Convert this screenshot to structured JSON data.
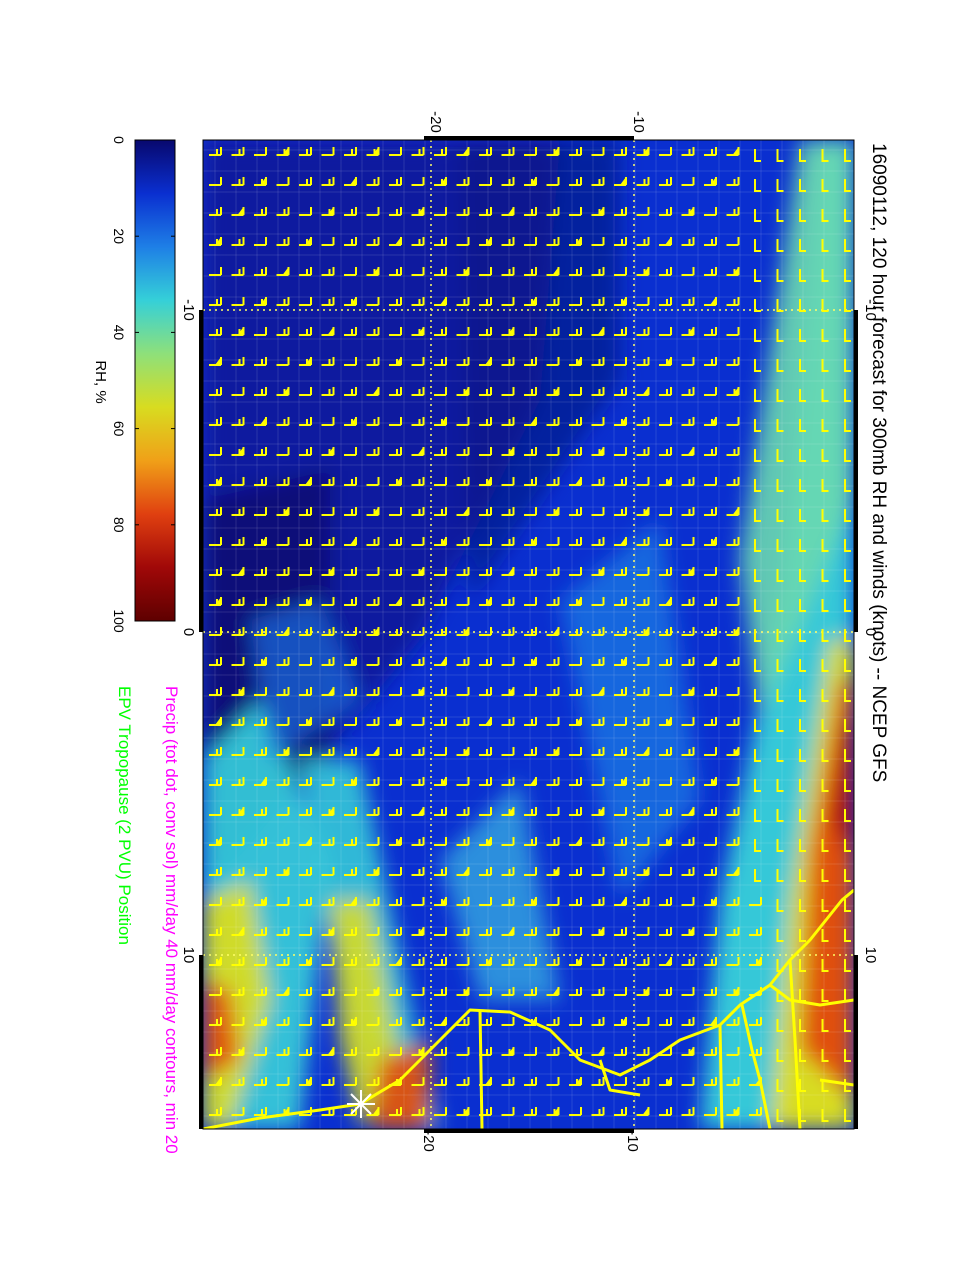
{
  "title": "16090112, 120 hour forecast for 300mb RH and winds (knots) -- NCEP GFS",
  "subtitle_precip": "Precip (tot dot, conv sol) mm/day 40 mm/day contours, min 20",
  "subtitle_tropopause": "EPV Tropopause (2 PVU) Position",
  "colorbar": {
    "label": "RH, %",
    "ticks": [
      "0",
      "20",
      "40",
      "60",
      "80",
      "100"
    ],
    "stops": [
      "#08086e",
      "#0a2fd0",
      "#1e7fe6",
      "#35d0d8",
      "#8ee07a",
      "#d8dc20",
      "#f0a018",
      "#e04010",
      "#a00808",
      "#5e0000"
    ]
  },
  "axes": {
    "top_ticks": [
      "-20",
      "-10"
    ],
    "bottom_ticks": [
      "-20",
      "-10"
    ],
    "left_ticks": [
      "-10",
      "0",
      "10"
    ],
    "right_ticks": [
      "-10",
      "0",
      "10"
    ]
  },
  "colors": {
    "barb": "#ffff00",
    "coast": "#ffff00",
    "precip_text": "#ff00ff",
    "tropopause_text": "#00ff00",
    "grid": "#ffff66"
  }
}
